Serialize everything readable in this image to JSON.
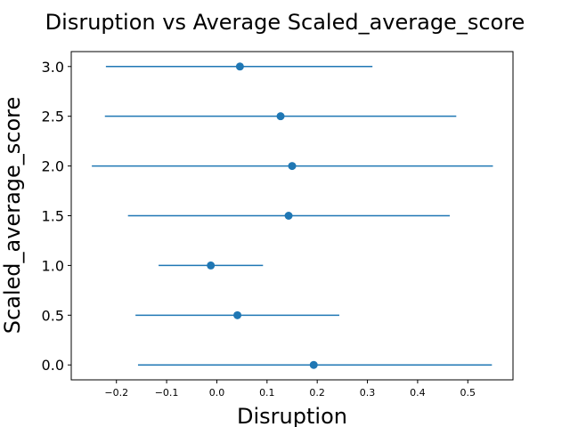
{
  "chart_data": {
    "type": "errorbar",
    "title": "Disruption vs Average Scaled_average_score",
    "xlabel": "Disruption",
    "ylabel": "Scaled_average_score",
    "xlim": [
      -0.29,
      0.59
    ],
    "ylim": [
      -0.15,
      3.15
    ],
    "xticks": [
      -0.2,
      -0.1,
      0.0,
      0.1,
      0.2,
      0.3,
      0.4,
      0.5
    ],
    "xtick_labels": [
      "−0.2",
      "−0.1",
      "0.0",
      "0.1",
      "0.2",
      "0.3",
      "0.4",
      "0.5"
    ],
    "yticks": [
      0.0,
      0.5,
      1.0,
      1.5,
      2.0,
      2.5,
      3.0
    ],
    "ytick_labels": [
      "0.0",
      "0.5",
      "1.0",
      "1.5",
      "2.0",
      "2.5",
      "3.0"
    ],
    "grid": false,
    "color": "#1f77b4",
    "points": [
      {
        "y": 0.0,
        "x": 0.193,
        "x_low": -0.157,
        "x_high": 0.548
      },
      {
        "y": 0.5,
        "x": 0.041,
        "x_low": -0.162,
        "x_high": 0.244
      },
      {
        "y": 1.0,
        "x": -0.012,
        "x_low": -0.116,
        "x_high": 0.092
      },
      {
        "y": 1.5,
        "x": 0.143,
        "x_low": -0.177,
        "x_high": 0.464
      },
      {
        "y": 2.0,
        "x": 0.15,
        "x_low": -0.249,
        "x_high": 0.55
      },
      {
        "y": 2.5,
        "x": 0.127,
        "x_low": -0.223,
        "x_high": 0.477
      },
      {
        "y": 3.0,
        "x": 0.046,
        "x_low": -0.221,
        "x_high": 0.31
      }
    ]
  }
}
